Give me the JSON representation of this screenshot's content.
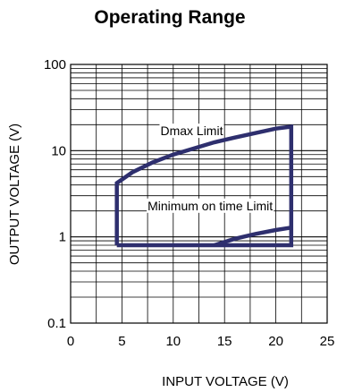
{
  "chart_data": {
    "type": "line",
    "title": "Operating Range",
    "xlabel": "INPUT VOLTAGE (V)",
    "ylabel": "OUTPUT VOLTAGE (V)",
    "xlim": [
      0,
      25
    ],
    "ylim": [
      0.1,
      100
    ],
    "yscale": "log",
    "x_ticks": [
      "0",
      "5",
      "10",
      "15",
      "20",
      "25"
    ],
    "y_ticks": [
      "0.1",
      "1",
      "10",
      "100"
    ],
    "grid": true,
    "line_color": "#2e2f6e",
    "series": [
      {
        "points": [
          [
            4.5,
            0.8
          ],
          [
            4.5,
            4.2
          ],
          [
            6,
            5.6
          ],
          [
            8,
            7.3
          ],
          [
            10,
            9.0
          ],
          [
            12,
            10.6
          ],
          [
            14,
            12.5
          ],
          [
            16,
            14.2
          ],
          [
            18,
            16.0
          ],
          [
            20,
            18.0
          ],
          [
            21.5,
            19.0
          ],
          [
            21.5,
            0.8
          ],
          [
            4.5,
            0.8
          ]
        ]
      },
      {
        "points": [
          [
            14,
            0.8
          ],
          [
            16,
            0.95
          ],
          [
            18,
            1.08
          ],
          [
            20,
            1.2
          ],
          [
            21.5,
            1.28
          ]
        ]
      }
    ],
    "annotations": [
      {
        "text": "Dmax Limit",
        "x": 11.8,
        "y": 17
      },
      {
        "text": "Minimum on time Limit",
        "x": 13.6,
        "y": 2.3
      }
    ]
  }
}
